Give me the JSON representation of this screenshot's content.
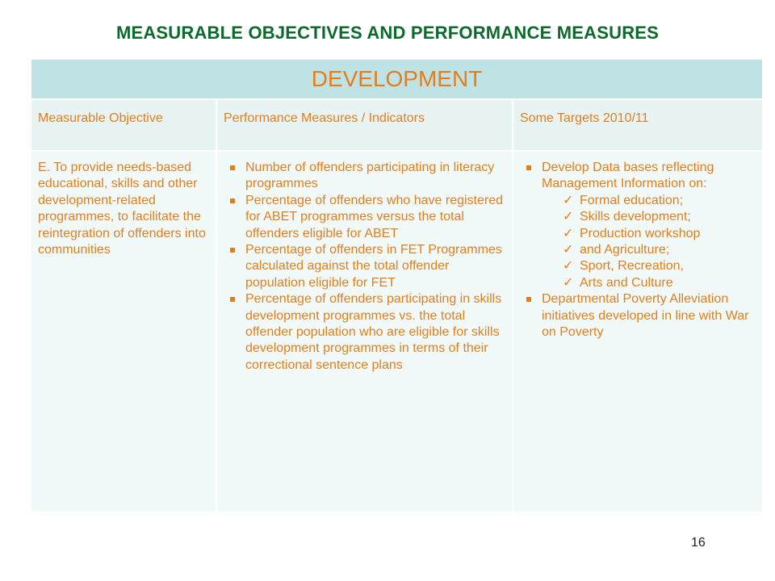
{
  "title": "MEASURABLE OBJECTIVES AND PERFORMANCE MEASURES",
  "section": "DEVELOPMENT",
  "headers": {
    "objective": "Measurable Objective",
    "measures": "Performance Measures / Indicators",
    "targets": "Some Targets 2010/11"
  },
  "objective_text": "E. To provide needs-based educational, skills and other development-related programmes, to facilitate the reintegration of offenders into communities",
  "measures": [
    "Number of offenders participating in literacy programmes",
    "Percentage of offenders who have registered for ABET programmes versus the total offenders eligible for ABET",
    "Percentage of offenders in FET Programmes calculated against the total offender population eligible for FET",
    "Percentage of offenders participating in skills development programmes vs. the total offender population who are eligible for skills development programmes in terms of their correctional sentence plans"
  ],
  "targets": {
    "item1": "Develop Data bases reflecting Management Information on:",
    "sub_items": [
      "Formal education;",
      "Skills development;",
      "Production workshop",
      "and Agriculture;",
      "Sport, Recreation,",
      "Arts and Culture"
    ],
    "item2": "Departmental Poverty Alleviation initiatives developed in line with War on Poverty"
  },
  "page_number": "16"
}
